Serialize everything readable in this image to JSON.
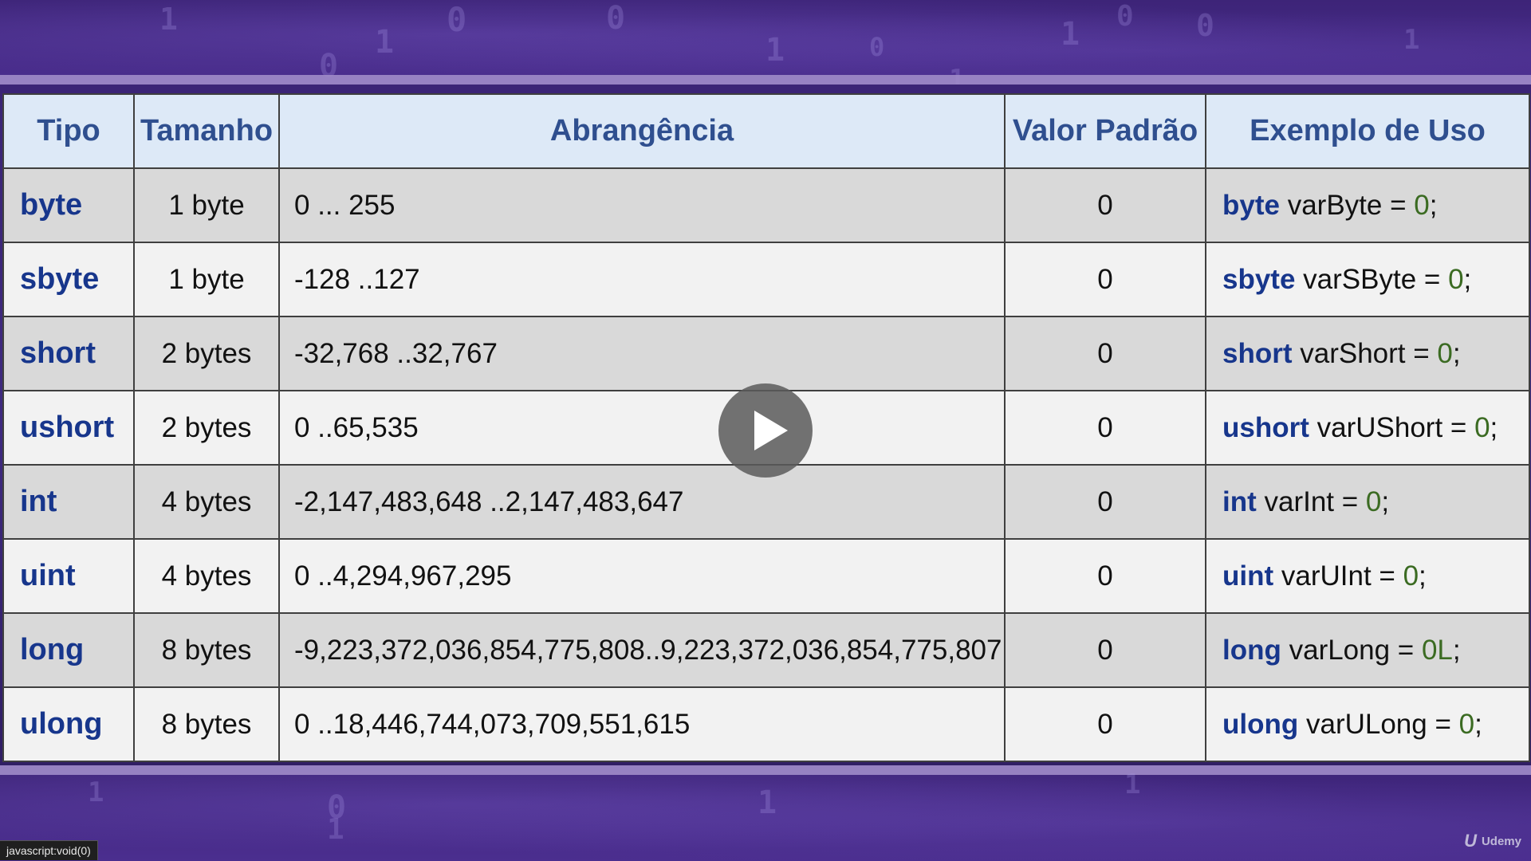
{
  "table": {
    "headers": [
      "Tipo",
      "Tamanho",
      "Abrangência",
      "Valor Padrão",
      "Exemplo de Uso"
    ],
    "rows": [
      {
        "type": "byte",
        "size": "1 byte",
        "range": "0 ... 255",
        "default": "0",
        "example_kw": "byte",
        "example_var": " varByte = ",
        "example_val": "0",
        "example_end": ";"
      },
      {
        "type": "sbyte",
        "size": "1 byte",
        "range": "-128 ..127",
        "default": "0",
        "example_kw": "sbyte",
        "example_var": " varSByte = ",
        "example_val": "0",
        "example_end": ";"
      },
      {
        "type": "short",
        "size": "2 bytes",
        "range": "-32,768 ..32,767",
        "default": "0",
        "example_kw": "short",
        "example_var": " varShort = ",
        "example_val": "0",
        "example_end": ";"
      },
      {
        "type": "ushort",
        "size": "2 bytes",
        "range": "0 ..65,535",
        "default": "0",
        "example_kw": "ushort",
        "example_var": " varUShort = ",
        "example_val": "0",
        "example_end": ";"
      },
      {
        "type": "int",
        "size": "4 bytes",
        "range": "-2,147,483,648 ..2,147,483,647",
        "default": "0",
        "example_kw": "int",
        "example_var": " varInt = ",
        "example_val": "0",
        "example_end": ";"
      },
      {
        "type": "uint",
        "size": "4 bytes",
        "range": "0 ..4,294,967,295",
        "default": "0",
        "example_kw": "uint",
        "example_var": " varUInt = ",
        "example_val": "0",
        "example_end": ";"
      },
      {
        "type": "long",
        "size": "8 bytes",
        "range": "-9,223,372,036,854,775,808..9,223,372,036,854,775,807",
        "default": "0",
        "example_kw": "long",
        "example_var": " varLong = ",
        "example_val": "0L",
        "example_end": ";"
      },
      {
        "type": "ulong",
        "size": "8 bytes",
        "range": "0 ..18,446,744,073,709,551,615",
        "default": "0",
        "example_kw": "ulong",
        "example_var": " varULong = ",
        "example_val": "0",
        "example_end": ";"
      }
    ]
  },
  "player": {
    "play_icon": "play-icon",
    "status_text": "javascript:void(0)",
    "brand_mark": "U",
    "brand_name": "Udemy"
  },
  "colors": {
    "type_keyword": "#17368c",
    "number_literal": "#3b6b22",
    "header_bg": "#dde9f7",
    "row_dark": "#d9d9d9",
    "row_light": "#f2f2f2"
  }
}
